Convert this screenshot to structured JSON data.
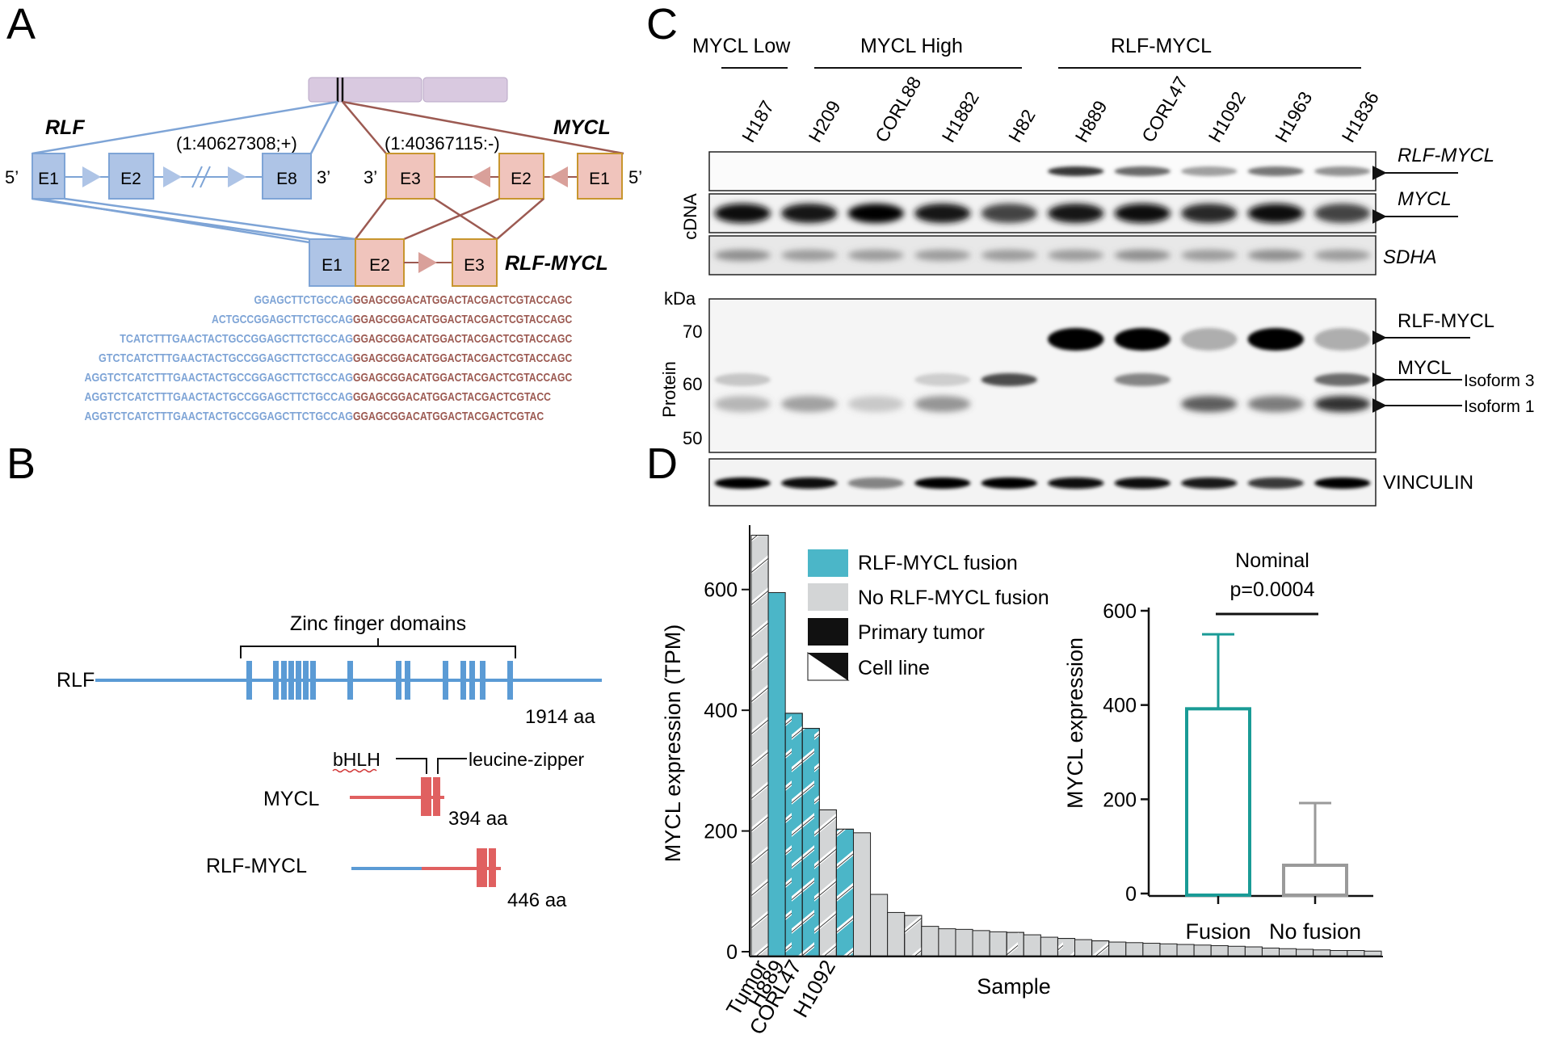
{
  "panel_letters": {
    "a": "A",
    "b": "B",
    "c": "C",
    "d": "D"
  },
  "panel_a": {
    "rlf_label": "RLF",
    "mycl_label": "MYCL",
    "fusion_label": "RLF-MYCL",
    "rlf_coord": "(1:40627308;+)",
    "mycl_coord": "(1:40367115:-)",
    "prime5": "5’",
    "prime3": "3’",
    "rlf_exons": [
      "E1",
      "E2",
      "E8"
    ],
    "mycl_exons": [
      "E3",
      "E2",
      "E1"
    ],
    "fusion_exons": [
      "E1",
      "E2",
      "E3"
    ],
    "sequences": [
      {
        "blue": "GGAGCTTCTGCCAG",
        "red": "GGAGCGGACATGGACTACGACTCGTACCAGC"
      },
      {
        "blue": "ACTGCCGGAGCTTCTGCCAG",
        "red": "GGAGCGGACATGGACTACGACTCGTACCAGC"
      },
      {
        "blue": "TCATCTTTGAACTACTGCCGGAGCTTCTGCCAG",
        "red": "GGAGCGGACATGGACTACGACTCGTACCAGC"
      },
      {
        "blue": "GTCTCATCTTTGAACTACTGCCGGAGCTTCTGCCAG",
        "red": "GGAGCGGACATGGACTACGACTCGTACCAGC"
      },
      {
        "blue": "AGGTCTCATCTTTGAACTACTGCCGGAGCTTCTGCCAG",
        "red": "GGAGCGGACATGGACTACGACTCGTACCAGC"
      },
      {
        "blue": "AGGTCTCATCTTTGAACTACTGCCGGAGCTTCTGCCAG",
        "red": "GGAGCGGACATGGACTACGACTCGTACC"
      },
      {
        "blue": "AGGTCTCATCTTTGAACTACTGCCGGAGCTTCTGCCAG",
        "red": "GGAGCGGACATGGACTACGACTCGTAC"
      }
    ],
    "colors": {
      "rlf": "#7ea4d6",
      "mycl": "#9c5a52",
      "rlf_fill": "#aec4e6",
      "mycl_fill": "#f0c4bc",
      "chrom": "#d9c9e0"
    }
  },
  "panel_b": {
    "zinc_label": "Zinc finger domains",
    "rlf_label": "RLF",
    "rlf_len": "1914 aa",
    "bhlh_label": "bHLH",
    "lz_label": "leucine-zipper",
    "mycl_label": "MYCL",
    "mycl_len": "394 aa",
    "fusion_label": "RLF-MYCL",
    "fusion_len": "446 aa",
    "colors": {
      "blue": "#5b9bd5",
      "red": "#e06060"
    }
  },
  "panel_c": {
    "groups": [
      "MYCL Low",
      "MYCL High",
      "RLF-MYCL"
    ],
    "lanes": [
      "H187",
      "H209",
      "CORL88",
      "H1882",
      "H82",
      "H889",
      "CORL47",
      "H1092",
      "H1963",
      "H1836"
    ],
    "cdna_label": "cDNA",
    "protein_label": "Protein",
    "kda_label": "kDa",
    "kda_ticks": [
      "70",
      "60",
      "50"
    ],
    "right_labels": {
      "cdna_fusion": "RLF-MYCL",
      "cdna_mycl": "MYCL",
      "cdna_sdha": "SDHA",
      "prot_fusion": "RLF-MYCL",
      "prot_mycl": "MYCL",
      "isoform3": "Isoform 3",
      "isoform1": "Isoform 1",
      "vinculin": "VINCULIN"
    },
    "band_intensity": {
      "cdna_fusion": [
        0.0,
        0.0,
        0.0,
        0.0,
        0.0,
        0.7,
        0.55,
        0.35,
        0.5,
        0.4
      ],
      "cdna_mycl": [
        0.85,
        0.75,
        1.0,
        0.8,
        0.6,
        0.8,
        0.9,
        0.7,
        0.85,
        0.6
      ],
      "cdna_sdha": [
        0.45,
        0.4,
        0.4,
        0.4,
        0.4,
        0.4,
        0.45,
        0.4,
        0.45,
        0.4
      ],
      "prot_fusion": [
        0.0,
        0.0,
        0.0,
        0.0,
        0.0,
        1.0,
        1.0,
        0.1,
        0.95,
        0.1
      ],
      "prot_iso3": [
        0.1,
        0.0,
        0.0,
        0.05,
        0.6,
        0.0,
        0.4,
        0.0,
        0.0,
        0.5
      ],
      "prot_iso1": [
        0.2,
        0.3,
        0.1,
        0.35,
        0.0,
        0.0,
        0.0,
        0.55,
        0.45,
        0.7
      ],
      "vinculin": [
        0.9,
        0.85,
        0.3,
        0.95,
        0.9,
        0.85,
        0.85,
        0.7,
        0.6,
        1.0
      ]
    }
  },
  "panel_d": {
    "legend": [
      "RLF-MYCL fusion",
      "No RLF-MYCL fusion",
      "Primary tumor",
      "Cell line"
    ],
    "nominal_label": "Nominal",
    "pvalue_label": "p=0.0004",
    "colors": {
      "fusion": "#4bb6c8",
      "nofusion": "#d3d5d6",
      "teal": "#1a9b96",
      "gray": "#9a9a9a"
    },
    "chart_data": [
      {
        "type": "bar",
        "ylabel": "MYCL expression (TPM)",
        "xlabel": "Sample",
        "ylim": [
          0,
          700
        ],
        "yticks": [
          0,
          200,
          400,
          600
        ],
        "categories": [
          "Tumor",
          "H889",
          "CORL47",
          "",
          "H1092"
        ],
        "bars": [
          {
            "value": 690,
            "fusion": false,
            "cell_line": true
          },
          {
            "value": 595,
            "fusion": true,
            "cell_line": false
          },
          {
            "value": 395,
            "fusion": true,
            "cell_line": true
          },
          {
            "value": 370,
            "fusion": true,
            "cell_line": true
          },
          {
            "value": 235,
            "fusion": false,
            "cell_line": true
          },
          {
            "value": 203,
            "fusion": true,
            "cell_line": true
          },
          {
            "value": 197,
            "fusion": false,
            "cell_line": false
          },
          {
            "value": 95,
            "fusion": false,
            "cell_line": false
          },
          {
            "value": 65,
            "fusion": false,
            "cell_line": false
          },
          {
            "value": 60,
            "fusion": false,
            "cell_line": true
          },
          {
            "value": 42,
            "fusion": false,
            "cell_line": false
          },
          {
            "value": 38,
            "fusion": false,
            "cell_line": false
          },
          {
            "value": 37,
            "fusion": false,
            "cell_line": false
          },
          {
            "value": 35,
            "fusion": false,
            "cell_line": false
          },
          {
            "value": 33,
            "fusion": false,
            "cell_line": false
          },
          {
            "value": 32,
            "fusion": false,
            "cell_line": true
          },
          {
            "value": 28,
            "fusion": false,
            "cell_line": false
          },
          {
            "value": 24,
            "fusion": false,
            "cell_line": false
          },
          {
            "value": 22,
            "fusion": false,
            "cell_line": true
          },
          {
            "value": 20,
            "fusion": false,
            "cell_line": false
          },
          {
            "value": 18,
            "fusion": false,
            "cell_line": true
          },
          {
            "value": 16,
            "fusion": false,
            "cell_line": false
          },
          {
            "value": 15,
            "fusion": false,
            "cell_line": false
          },
          {
            "value": 14,
            "fusion": false,
            "cell_line": false
          },
          {
            "value": 13,
            "fusion": false,
            "cell_line": false
          },
          {
            "value": 12,
            "fusion": false,
            "cell_line": false
          },
          {
            "value": 11,
            "fusion": false,
            "cell_line": false
          },
          {
            "value": 10,
            "fusion": false,
            "cell_line": false
          },
          {
            "value": 9,
            "fusion": false,
            "cell_line": false
          },
          {
            "value": 8,
            "fusion": false,
            "cell_line": false
          },
          {
            "value": 6,
            "fusion": false,
            "cell_line": false
          },
          {
            "value": 5,
            "fusion": false,
            "cell_line": false
          },
          {
            "value": 4,
            "fusion": false,
            "cell_line": false
          },
          {
            "value": 3,
            "fusion": false,
            "cell_line": false
          },
          {
            "value": 2,
            "fusion": false,
            "cell_line": false
          },
          {
            "value": 2,
            "fusion": false,
            "cell_line": false
          },
          {
            "value": 1,
            "fusion": false,
            "cell_line": false
          }
        ]
      },
      {
        "type": "bar",
        "ylabel": "MYCL expression",
        "ylim": [
          0,
          600
        ],
        "yticks": [
          0,
          200,
          400,
          600
        ],
        "categories": [
          "Fusion",
          "No fusion"
        ],
        "values": [
          392,
          60
        ],
        "error_upper": [
          550,
          192
        ]
      }
    ]
  }
}
